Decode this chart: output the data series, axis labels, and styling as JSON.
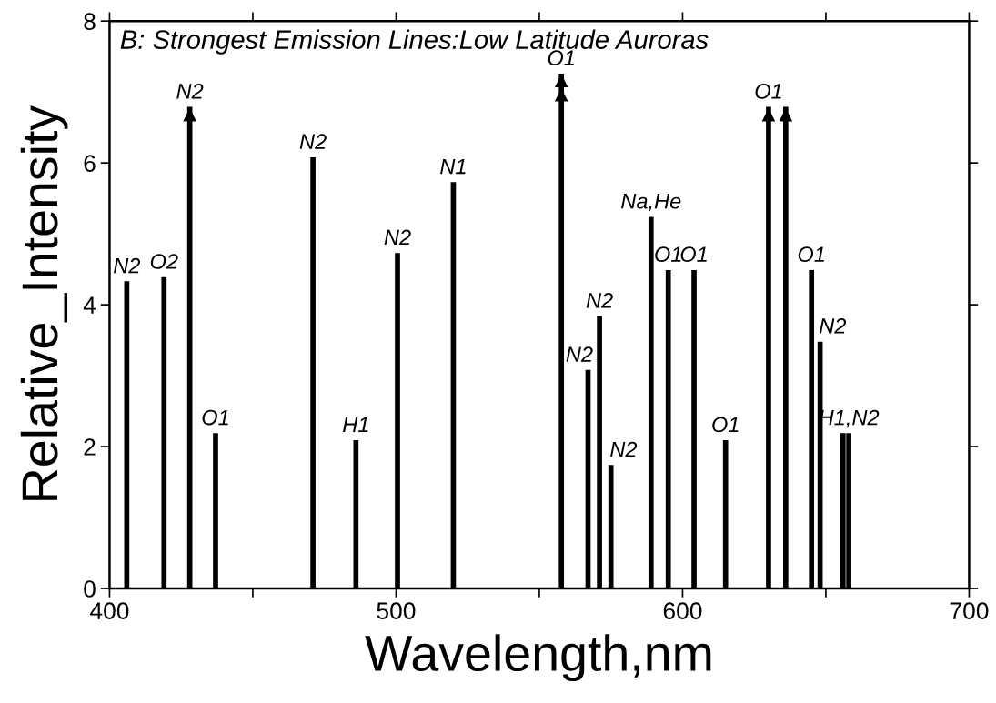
{
  "chart_data": {
    "type": "bar",
    "title": "B: Strongest Emission Lines:Low Latitude Auroras",
    "xlabel": "Wavelength,nm",
    "ylabel": "Relative_Intensity",
    "xlim": [
      400,
      700
    ],
    "xticks": [
      400,
      {
        "value": 450,
        "label": null
      },
      500,
      {
        "value": 550,
        "label": null
      },
      600,
      {
        "value": 650,
        "label": null
      },
      700
    ],
    "ylim": [
      0,
      8
    ],
    "yticks": [
      0,
      2,
      4,
      6,
      8
    ],
    "grid": false,
    "legend": false,
    "series": [
      {
        "color": "#000000",
        "x": [
          406,
          419,
          428,
          437,
          471,
          486,
          500.5,
          520,
          557.7,
          567,
          571,
          575,
          589.0,
          595,
          604,
          615,
          630,
          636,
          645,
          648,
          656,
          658
        ],
        "values": [
          4.33,
          4.39,
          6.79,
          2.19,
          6.08,
          2.09,
          4.73,
          5.73,
          7.26,
          3.08,
          3.84,
          1.74,
          5.24,
          4.49,
          4.49,
          2.09,
          6.79,
          6.79,
          4.49,
          3.48,
          2.19,
          2.19
        ]
      },
      {
        "type": "scatter",
        "color": "#000000",
        "marker": "triangle",
        "x": [
          428,
          557.7,
          557.7,
          630,
          636
        ],
        "values": [
          6.68,
          7.16,
          6.96,
          6.68,
          6.68
        ]
      }
    ],
    "annotations": [
      {
        "text": "N2",
        "x": 406,
        "y": 4.33
      },
      {
        "text": "O2",
        "x": 419,
        "y": 4.39
      },
      {
        "text": "N2",
        "x": 428,
        "y": 6.79
      },
      {
        "text": "O1",
        "x": 437,
        "y": 2.19
      },
      {
        "text": "N2",
        "x": 471,
        "y": 6.08
      },
      {
        "text": "H1",
        "x": 486,
        "y": 2.09
      },
      {
        "text": "N2",
        "x": 500.5,
        "y": 4.73
      },
      {
        "text": "N1",
        "x": 520,
        "y": 5.73
      },
      {
        "text": "O1",
        "x": 557.7,
        "y": 7.26
      },
      {
        "text": "N2",
        "x": 567,
        "y": 3.08
      },
      {
        "text": "N2",
        "x": 571,
        "y": 3.84
      },
      {
        "text": "N2",
        "x": 575,
        "y": 1.74
      },
      {
        "text": "Na,He",
        "x": 589.0,
        "y": 5.24
      },
      {
        "text": "O1",
        "x": 595,
        "y": 4.49
      },
      {
        "text": "O1",
        "x": 604,
        "y": 4.49
      },
      {
        "text": "O1",
        "x": 615,
        "y": 2.09
      },
      {
        "text": "O1",
        "x": 630,
        "y": 6.79
      },
      {
        "text": "O1",
        "x": 645,
        "y": 4.49
      },
      {
        "text": "N2",
        "x": 648,
        "y": 3.48
      },
      {
        "text": "H1,N2",
        "x": 658,
        "y": 2.19
      }
    ]
  }
}
